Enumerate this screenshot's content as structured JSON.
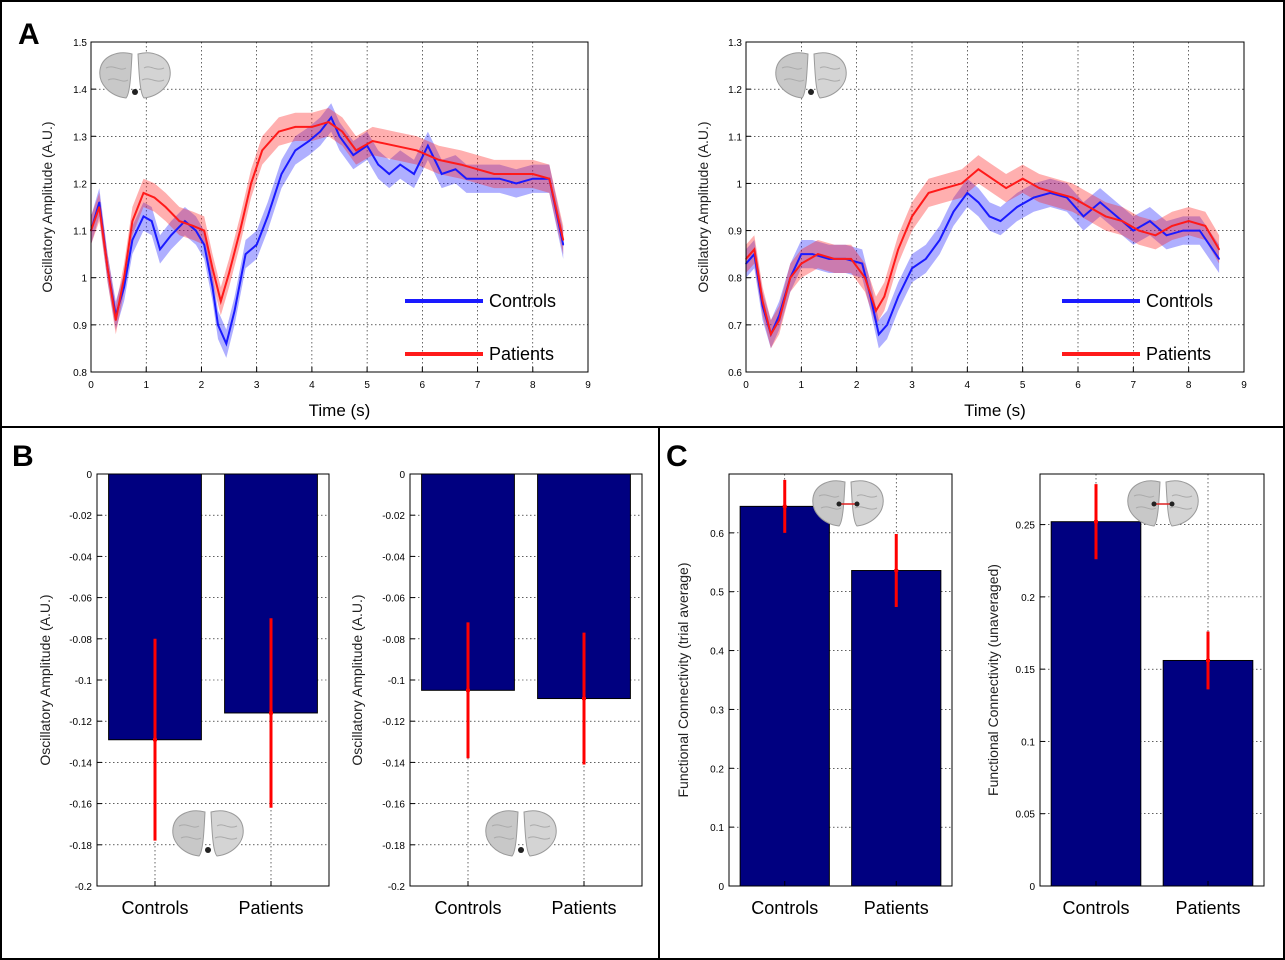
{
  "panel_letters": [
    "A",
    "B",
    "C"
  ],
  "colors": {
    "controls": "#1a1aff",
    "patients": "#ff1a1a",
    "bar": "#000080",
    "errorbar": "#ff0000"
  },
  "icon": "brain-inset-icon",
  "chart_data": [
    {
      "id": "A1",
      "type": "line",
      "panel": "A",
      "xlabel": "Time (s)",
      "ylabel": "Oscillatory Amplitude (A.U.)",
      "xlim": [
        0,
        9
      ],
      "ylim": [
        0.8,
        1.5
      ],
      "xticks": [
        "0",
        "1",
        "2",
        "3",
        "4",
        "5",
        "6",
        "7",
        "8",
        "9"
      ],
      "yticks": [
        "0.8",
        "0.9",
        "1",
        "1.1",
        "1.2",
        "1.3",
        "1.4",
        "1.5"
      ],
      "grid": true,
      "legend": "bottom-right",
      "series": [
        {
          "name": "Controls",
          "key": "controls",
          "band": 0.03,
          "points": [
            [
              0,
              1.1
            ],
            [
              0.15,
              1.16
            ],
            [
              0.3,
              1.02
            ],
            [
              0.45,
              0.92
            ],
            [
              0.6,
              0.98
            ],
            [
              0.75,
              1.08
            ],
            [
              0.95,
              1.13
            ],
            [
              1.1,
              1.12
            ],
            [
              1.25,
              1.06
            ],
            [
              1.45,
              1.09
            ],
            [
              1.7,
              1.12
            ],
            [
              1.9,
              1.1
            ],
            [
              2.05,
              1.07
            ],
            [
              2.2,
              0.98
            ],
            [
              2.3,
              0.9
            ],
            [
              2.45,
              0.86
            ],
            [
              2.6,
              0.93
            ],
            [
              2.8,
              1.05
            ],
            [
              3.0,
              1.07
            ],
            [
              3.2,
              1.13
            ],
            [
              3.45,
              1.22
            ],
            [
              3.7,
              1.27
            ],
            [
              3.95,
              1.29
            ],
            [
              4.15,
              1.31
            ],
            [
              4.35,
              1.34
            ],
            [
              4.5,
              1.3
            ],
            [
              4.75,
              1.26
            ],
            [
              5.0,
              1.28
            ],
            [
              5.2,
              1.24
            ],
            [
              5.4,
              1.22
            ],
            [
              5.6,
              1.24
            ],
            [
              5.85,
              1.22
            ],
            [
              6.1,
              1.28
            ],
            [
              6.35,
              1.22
            ],
            [
              6.6,
              1.23
            ],
            [
              6.8,
              1.21
            ],
            [
              7.1,
              1.21
            ],
            [
              7.4,
              1.21
            ],
            [
              7.7,
              1.2
            ],
            [
              8.0,
              1.21
            ],
            [
              8.3,
              1.21
            ],
            [
              8.55,
              1.07
            ]
          ]
        },
        {
          "name": "Patients",
          "key": "patients",
          "band": 0.03,
          "points": [
            [
              0,
              1.1
            ],
            [
              0.15,
              1.15
            ],
            [
              0.3,
              1.02
            ],
            [
              0.45,
              0.91
            ],
            [
              0.6,
              1.0
            ],
            [
              0.75,
              1.12
            ],
            [
              0.95,
              1.18
            ],
            [
              1.15,
              1.17
            ],
            [
              1.35,
              1.15
            ],
            [
              1.6,
              1.12
            ],
            [
              1.85,
              1.11
            ],
            [
              2.05,
              1.1
            ],
            [
              2.2,
              1.02
            ],
            [
              2.35,
              0.95
            ],
            [
              2.5,
              1.01
            ],
            [
              2.7,
              1.1
            ],
            [
              2.9,
              1.2
            ],
            [
              3.1,
              1.27
            ],
            [
              3.4,
              1.31
            ],
            [
              3.7,
              1.32
            ],
            [
              4.0,
              1.32
            ],
            [
              4.3,
              1.33
            ],
            [
              4.55,
              1.31
            ],
            [
              4.8,
              1.27
            ],
            [
              5.1,
              1.29
            ],
            [
              5.5,
              1.28
            ],
            [
              5.9,
              1.27
            ],
            [
              6.3,
              1.25
            ],
            [
              6.7,
              1.24
            ],
            [
              7.0,
              1.23
            ],
            [
              7.3,
              1.22
            ],
            [
              7.6,
              1.22
            ],
            [
              8.0,
              1.22
            ],
            [
              8.3,
              1.21
            ],
            [
              8.55,
              1.08
            ]
          ]
        }
      ]
    },
    {
      "id": "A2",
      "type": "line",
      "panel": "A",
      "xlabel": "Time (s)",
      "ylabel": "Oscillatory Amplitude (A.U.)",
      "xlim": [
        0,
        9
      ],
      "ylim": [
        0.6,
        1.3
      ],
      "xticks": [
        "0",
        "1",
        "2",
        "3",
        "4",
        "5",
        "6",
        "7",
        "8",
        "9"
      ],
      "yticks": [
        "0.6",
        "0.7",
        "0.8",
        "0.9",
        "1",
        "1.1",
        "1.2",
        "1.3"
      ],
      "grid": true,
      "legend": "bottom-right",
      "series": [
        {
          "name": "Controls",
          "key": "controls",
          "band": 0.03,
          "points": [
            [
              0,
              0.83
            ],
            [
              0.15,
              0.85
            ],
            [
              0.3,
              0.74
            ],
            [
              0.45,
              0.68
            ],
            [
              0.6,
              0.72
            ],
            [
              0.8,
              0.8
            ],
            [
              1.0,
              0.85
            ],
            [
              1.2,
              0.85
            ],
            [
              1.5,
              0.84
            ],
            [
              1.8,
              0.84
            ],
            [
              2.1,
              0.83
            ],
            [
              2.25,
              0.76
            ],
            [
              2.4,
              0.68
            ],
            [
              2.55,
              0.7
            ],
            [
              2.75,
              0.76
            ],
            [
              3.0,
              0.82
            ],
            [
              3.25,
              0.84
            ],
            [
              3.5,
              0.88
            ],
            [
              3.75,
              0.94
            ],
            [
              4.0,
              0.98
            ],
            [
              4.2,
              0.96
            ],
            [
              4.4,
              0.93
            ],
            [
              4.6,
              0.92
            ],
            [
              4.9,
              0.95
            ],
            [
              5.2,
              0.97
            ],
            [
              5.5,
              0.98
            ],
            [
              5.8,
              0.97
            ],
            [
              6.1,
              0.93
            ],
            [
              6.4,
              0.96
            ],
            [
              6.7,
              0.93
            ],
            [
              7.0,
              0.9
            ],
            [
              7.3,
              0.92
            ],
            [
              7.6,
              0.89
            ],
            [
              7.9,
              0.9
            ],
            [
              8.2,
              0.9
            ],
            [
              8.55,
              0.84
            ]
          ]
        },
        {
          "name": "Patients",
          "key": "patients",
          "band": 0.03,
          "points": [
            [
              0,
              0.84
            ],
            [
              0.15,
              0.86
            ],
            [
              0.3,
              0.75
            ],
            [
              0.45,
              0.68
            ],
            [
              0.6,
              0.71
            ],
            [
              0.8,
              0.8
            ],
            [
              1.0,
              0.83
            ],
            [
              1.3,
              0.85
            ],
            [
              1.6,
              0.84
            ],
            [
              1.9,
              0.84
            ],
            [
              2.15,
              0.8
            ],
            [
              2.35,
              0.73
            ],
            [
              2.5,
              0.76
            ],
            [
              2.75,
              0.86
            ],
            [
              3.0,
              0.93
            ],
            [
              3.3,
              0.98
            ],
            [
              3.6,
              0.99
            ],
            [
              3.9,
              1.0
            ],
            [
              4.2,
              1.03
            ],
            [
              4.45,
              1.01
            ],
            [
              4.7,
              0.99
            ],
            [
              5.0,
              1.01
            ],
            [
              5.3,
              0.99
            ],
            [
              5.6,
              0.98
            ],
            [
              5.9,
              0.97
            ],
            [
              6.2,
              0.95
            ],
            [
              6.5,
              0.93
            ],
            [
              6.8,
              0.92
            ],
            [
              7.1,
              0.9
            ],
            [
              7.4,
              0.89
            ],
            [
              7.7,
              0.91
            ],
            [
              8.0,
              0.92
            ],
            [
              8.3,
              0.91
            ],
            [
              8.55,
              0.86
            ]
          ]
        }
      ]
    },
    {
      "id": "B1",
      "type": "bar",
      "panel": "B",
      "ylabel": "Oscillatory Amplitude (A.U.)",
      "categories": [
        "Controls",
        "Patients"
      ],
      "values": [
        -0.129,
        -0.116
      ],
      "errors": [
        0.049,
        0.046
      ],
      "ylim": [
        -0.2,
        0
      ],
      "yticks": [
        "0",
        "-0.02",
        "-0.04",
        "-0.06",
        "-0.08",
        "-0.1",
        "-0.12",
        "-0.14",
        "-0.16",
        "-0.18",
        "-0.2"
      ],
      "grid": true
    },
    {
      "id": "B2",
      "type": "bar",
      "panel": "B",
      "ylabel": "Oscillatory Amplitude (A.U.)",
      "categories": [
        "Controls",
        "Patients"
      ],
      "values": [
        -0.105,
        -0.109
      ],
      "errors": [
        0.033,
        0.032
      ],
      "ylim": [
        -0.2,
        0
      ],
      "yticks": [
        "0",
        "-0.02",
        "-0.04",
        "-0.06",
        "-0.08",
        "-0.1",
        "-0.12",
        "-0.14",
        "-0.16",
        "-0.18",
        "-0.2"
      ],
      "grid": true
    },
    {
      "id": "C1",
      "type": "bar",
      "panel": "C",
      "ylabel": "Functional Connectivity  (trial average)",
      "categories": [
        "Controls",
        "Patients"
      ],
      "values": [
        0.645,
        0.536
      ],
      "errors": [
        0.045,
        0.062
      ],
      "ylim": [
        0,
        0.7
      ],
      "yticks": [
        "0",
        "0.1",
        "0.2",
        "0.3",
        "0.4",
        "0.5",
        "0.6"
      ],
      "grid": true
    },
    {
      "id": "C2",
      "type": "bar",
      "panel": "C",
      "ylabel": "Functional Connectivity  (unaveraged)",
      "categories": [
        "Controls",
        "Patients"
      ],
      "values": [
        0.252,
        0.156
      ],
      "errors": [
        0.026,
        0.02
      ],
      "ylim": [
        0,
        0.285
      ],
      "yticks": [
        "0",
        "0.05",
        "0.1",
        "0.15",
        "0.2",
        "0.25"
      ],
      "grid": true
    }
  ]
}
